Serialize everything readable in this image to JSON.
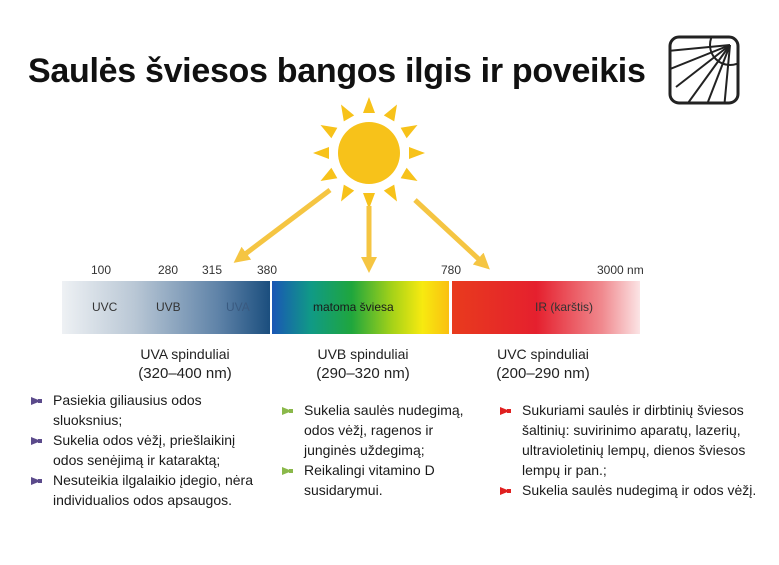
{
  "title": "Saulės šviesos bangos ilgis ir poveikis",
  "icons": {
    "corner": "sun-corner-icon",
    "sun": "sun-icon"
  },
  "colors": {
    "purple": "#5b4a8b",
    "green": "#8ab84a",
    "red": "#e02020",
    "sun": "#f7c21a",
    "arrow": "#f5c542"
  },
  "scale": {
    "wavelengths": [
      "100",
      "280",
      "315",
      "380",
      "780",
      "3000 nm"
    ],
    "bands": [
      "UVC",
      "UVB",
      "UVA",
      "matoma šviesa",
      "IR (karštis)"
    ]
  },
  "columns": [
    {
      "title": "UVA spinduliai",
      "range": "(320–400 nm)",
      "bullet_color": "purple",
      "items": [
        "Pasiekia giliausius odos sluoksnius;",
        "Sukelia odos vėžį, priešlaikinį odos senėjimą ir kataraktą;",
        "Nesuteikia ilgalaikio įdegio, nėra individualios odos apsaugos."
      ]
    },
    {
      "title": "UVB spinduliai",
      "range": "(290–320 nm)",
      "bullet_color": "green",
      "items": [
        "Sukelia saulės nudegimą, odos vėžį, ragenos ir junginės uždegimą;",
        "Reikalingi vitamino D susidarymui."
      ]
    },
    {
      "title": "UVC spinduliai",
      "range": "(200–290 nm)",
      "bullet_color": "red",
      "items": [
        "Sukuriami saulės ir dirbtinių šviesos šaltinių: suvirinimo aparatų, lazerių, ultravioletinių lempų, dienos šviesos lempų ir pan.;",
        "Sukelia saulės nudegimą ir odos vėžį."
      ]
    }
  ]
}
